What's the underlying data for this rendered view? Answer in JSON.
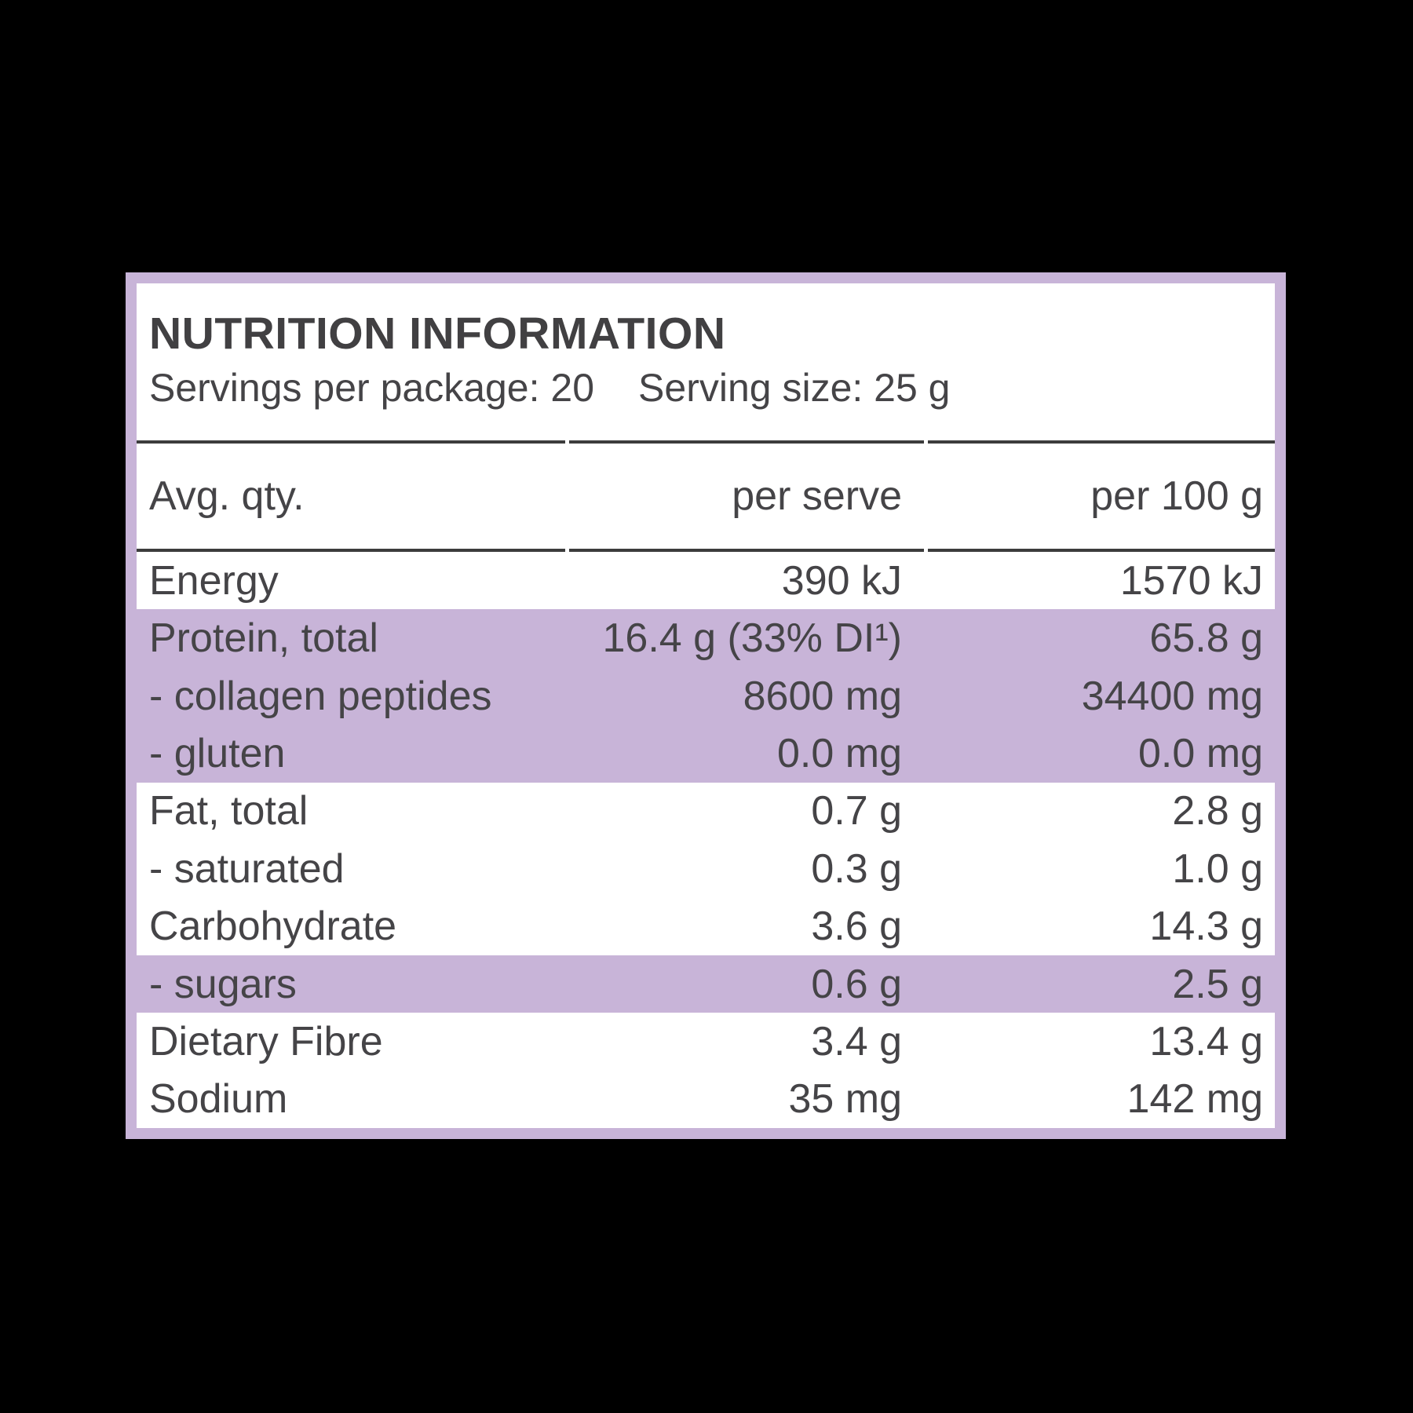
{
  "panel": {
    "title": "NUTRITION INFORMATION",
    "servings_per_package": "Servings per package: 20",
    "serving_size": "Serving size: 25 g"
  },
  "table": {
    "columns": [
      "Avg. qty.",
      "per serve",
      "per 100 g"
    ],
    "rows": [
      {
        "label": "Energy",
        "per_serve": "390 kJ",
        "per_100g": "1570 kJ"
      },
      {
        "label": "Protein, total",
        "per_serve": "16.4 g (33% DI¹)",
        "per_100g": "65.8 g"
      },
      {
        "label": "- collagen peptides",
        "per_serve": "8600 mg",
        "per_100g": "34400 mg"
      },
      {
        "label": "- gluten",
        "per_serve": "0.0 mg",
        "per_100g": "0.0 mg"
      },
      {
        "label": "Fat, total",
        "per_serve": "0.7 g",
        "per_100g": "2.8 g"
      },
      {
        "label": "- saturated",
        "per_serve": "0.3 g",
        "per_100g": "1.0 g"
      },
      {
        "label": "Carbohydrate",
        "per_serve": "3.6 g",
        "per_100g": "14.3 g"
      },
      {
        "label": "- sugars",
        "per_serve": "0.6 g",
        "per_100g": "2.5 g"
      },
      {
        "label": "Dietary Fibre",
        "per_serve": "3.4 g",
        "per_100g": "13.4 g"
      },
      {
        "label": "Sodium",
        "per_serve": "35 mg",
        "per_100g": "142 mg"
      }
    ]
  },
  "colors": {
    "accent_purple": "#c8b4d8",
    "text_dark": "#414042",
    "divider_dark": "#3c3c3c",
    "panel_background": "#ffffff",
    "page_background": "#000000"
  }
}
